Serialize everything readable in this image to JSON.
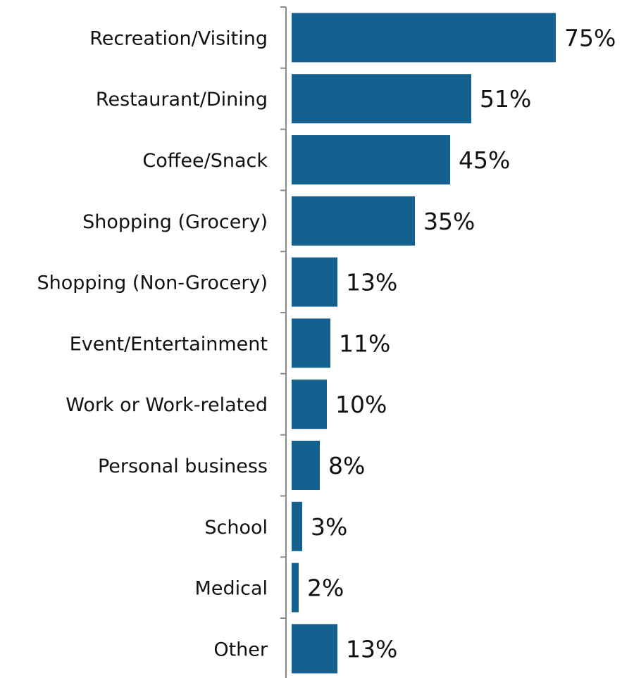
{
  "chart_data": {
    "type": "bar",
    "orientation": "horizontal",
    "categories": [
      "Recreation/Visiting",
      "Restaurant/Dining",
      "Coffee/Snack",
      "Shopping (Grocery)",
      "Shopping (Non-Grocery)",
      "Event/Entertainment",
      "Work or Work-related",
      "Personal business",
      "School",
      "Medical",
      "Other"
    ],
    "values": [
      75,
      51,
      45,
      35,
      13,
      11,
      10,
      8,
      3,
      2,
      13
    ],
    "value_labels": [
      "75%",
      "51%",
      "45%",
      "35%",
      "13%",
      "11%",
      "10%",
      "8%",
      "3%",
      "2%",
      "13%"
    ],
    "title": "",
    "xlabel": "",
    "ylabel": "",
    "xlim": [
      0,
      80
    ],
    "grid": false,
    "legend": "none",
    "bar_color": "#14618f"
  }
}
